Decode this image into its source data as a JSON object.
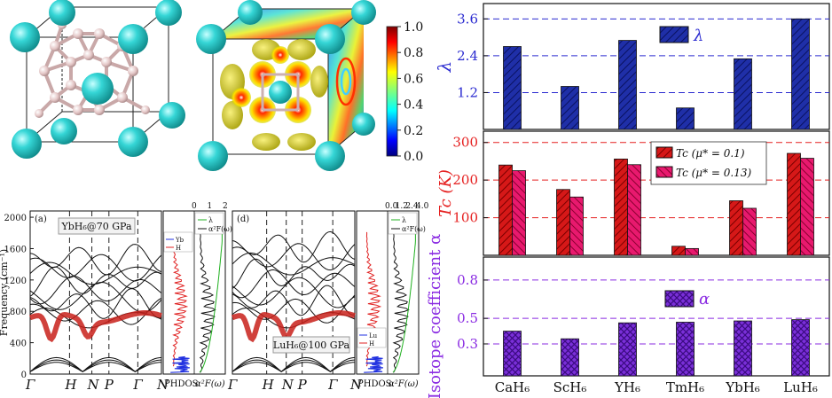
{
  "colorbar": {
    "ticks": [
      "1.0",
      "0.8",
      "0.6",
      "0.4",
      "0.2",
      "0.0"
    ]
  },
  "band_panels": [
    {
      "panel_label": "(a)",
      "compound_label": "YbH₆@70 GPa",
      "ylabel": "Frequency (cm⁻¹)",
      "yticks": [
        "0",
        "400",
        "800",
        "1200",
        "1600",
        "2000"
      ],
      "ylim": [
        0,
        2080
      ],
      "kpoints": [
        "Γ",
        "H",
        "N",
        "P",
        "Γ",
        "N"
      ],
      "pdos_xlabel": "PHDOS",
      "a2f_xlabel": "α²F(ω)",
      "a2f_ticks": [
        "0",
        "1",
        "2"
      ],
      "legend_top": [
        "λ",
        "α²F(ω)"
      ],
      "legend_bottom": [
        "Yb",
        "H"
      ]
    },
    {
      "panel_label": "(d)",
      "compound_label": "LuH₆@100 GPa",
      "ylabel": "",
      "yticks": [],
      "ylim": [
        0,
        2080
      ],
      "kpoints": [
        "Γ",
        "H",
        "N",
        "P",
        "Γ",
        "N"
      ],
      "pdos_xlabel": "PHDOS",
      "a2f_xlabel": "α²F(ω)",
      "a2f_ticks": [
        "0.0",
        "1.2",
        "2.4",
        "4.0"
      ],
      "legend_top": [
        "λ",
        "α²F(ω)"
      ],
      "legend_bottom": [
        "Lu",
        "H"
      ]
    }
  ],
  "chart_data": [
    {
      "type": "bar",
      "title": "",
      "categories": [
        "CaH₆",
        "ScH₆",
        "YH₆",
        "TmH₆",
        "YbH₆",
        "LuH₆"
      ],
      "ylabel": "λ",
      "ylim": [
        0,
        4.1
      ],
      "yticks": [
        1.2,
        2.4,
        3.6
      ],
      "ytick_labels": [
        "1.2",
        "2.4",
        "3.6"
      ],
      "grid": "dashed",
      "legend": "top-center",
      "series": [
        {
          "name": "λ",
          "values": [
            2.7,
            1.4,
            2.9,
            0.7,
            2.3,
            3.6
          ]
        }
      ],
      "colors": {
        "bar": "#1f2fa8",
        "grid": "#2a2ad0",
        "tick": "#2a2ad0"
      }
    },
    {
      "type": "bar",
      "title": "",
      "categories": [
        "CaH₆",
        "ScH₆",
        "YH₆",
        "TmH₆",
        "YbH₆",
        "LuH₆"
      ],
      "ylabel": "Tc (K)",
      "ylim": [
        0,
        330
      ],
      "yticks": [
        100,
        200,
        300
      ],
      "ytick_labels": [
        "100",
        "200",
        "300"
      ],
      "grid": "dashed",
      "legend": "top-right",
      "series": [
        {
          "name": "Tc (μ* = 0.1)",
          "values": [
            240,
            175,
            256,
            24,
            145,
            271
          ]
        },
        {
          "name": "Tc (μ* = 0.13)",
          "values": [
            225,
            155,
            241,
            18,
            125,
            258
          ]
        }
      ],
      "colors": {
        "series": [
          "#d61818",
          "#e8196e"
        ],
        "grid": "#e52020",
        "tick": "#e52020"
      }
    },
    {
      "type": "bar",
      "title": "",
      "categories": [
        "CaH₆",
        "ScH₆",
        "YH₆",
        "TmH₆",
        "YbH₆",
        "LuH₆"
      ],
      "ylabel": "Isotope coefficient α",
      "ylim": [
        0.05,
        0.98
      ],
      "yticks": [
        0.3,
        0.5,
        0.8
      ],
      "ytick_labels": [
        "0.3",
        "0.5",
        "0.8"
      ],
      "grid": "dashed",
      "legend": "top-center",
      "series": [
        {
          "name": "α",
          "values": [
            0.4,
            0.34,
            0.465,
            0.47,
            0.48,
            0.49
          ]
        }
      ],
      "colors": {
        "bar": "#7a2fd8",
        "grid": "#8a2be2",
        "tick": "#8a2be2"
      }
    }
  ]
}
